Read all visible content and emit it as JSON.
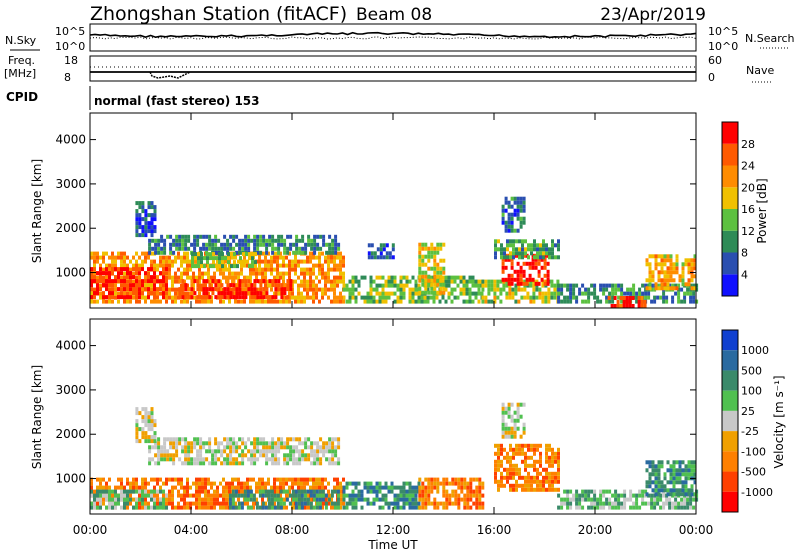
{
  "header": {
    "station": "Zhongshan Station (fitACF)",
    "beam": "Beam 08",
    "date": "23/Apr/2019"
  },
  "status_panels": {
    "nsky_label": "N.Sky",
    "nsearch_label": "N.Search",
    "noise_ticks": [
      "10^5",
      "10^0"
    ],
    "freq_label": "Freq.",
    "freq_unit": "[MHz]",
    "freq_ticks": [
      "18",
      "8"
    ],
    "nave_label": "Nave",
    "nave_ticks": [
      "60",
      "0"
    ],
    "cpid_label": "CPID",
    "cpid_value": "normal (fast stereo) 153"
  },
  "colors": {
    "power_scale": [
      "#1010ff",
      "#2a4fb0",
      "#2e8b57",
      "#5cc040",
      "#f0c000",
      "#ff8c00",
      "#ff5a00",
      "#ff0000"
    ],
    "velocity_scale": [
      "#1040d0",
      "#2a6aa0",
      "#3a8a6a",
      "#50c050",
      "#c8c8c8",
      "#f0a000",
      "#ff8000",
      "#ff4000",
      "#ff0000"
    ]
  },
  "chart_data": [
    {
      "type": "heatmap",
      "name": "power",
      "ylabel": "Slant Range [km]",
      "y_ticks": [
        "1000",
        "2000",
        "3000",
        "4000"
      ],
      "ylim": [
        200,
        4600
      ],
      "xlim": [
        0,
        24
      ],
      "colorbar_label": "Power [dB]",
      "colorbar_ticks": [
        "4",
        "8",
        "12",
        "16",
        "20",
        "24",
        "28"
      ],
      "colorbar_range": [
        0,
        32
      ],
      "regions": [
        {
          "t0": 0.0,
          "t1": 10.0,
          "r0": 300,
          "r1": 1400,
          "level": 22
        },
        {
          "t0": 0.0,
          "t1": 3.0,
          "r0": 400,
          "r1": 1100,
          "level": 28
        },
        {
          "t0": 3.5,
          "t1": 8.0,
          "r0": 400,
          "r1": 800,
          "level": 28
        },
        {
          "t0": 2.3,
          "t1": 9.8,
          "r0": 1400,
          "r1": 1800,
          "level": 9
        },
        {
          "t0": 1.8,
          "t1": 2.6,
          "r0": 1800,
          "r1": 2600,
          "level": 6
        },
        {
          "t0": 4.0,
          "t1": 6.5,
          "r0": 1100,
          "r1": 1400,
          "level": 14
        },
        {
          "t0": 10.0,
          "t1": 15.5,
          "r0": 300,
          "r1": 900,
          "level": 14
        },
        {
          "t0": 13.0,
          "t1": 14.0,
          "r0": 500,
          "r1": 1600,
          "level": 18
        },
        {
          "t0": 15.5,
          "t1": 18.5,
          "r0": 300,
          "r1": 800,
          "level": 16
        },
        {
          "t0": 16.3,
          "t1": 18.2,
          "r0": 700,
          "r1": 1400,
          "level": 30
        },
        {
          "t0": 16.0,
          "t1": 18.5,
          "r0": 1300,
          "r1": 1700,
          "level": 12
        },
        {
          "t0": 16.3,
          "t1": 17.2,
          "r0": 1900,
          "r1": 2700,
          "level": 8
        },
        {
          "t0": 18.5,
          "t1": 24.0,
          "r0": 300,
          "r1": 700,
          "level": 10
        },
        {
          "t0": 20.5,
          "t1": 22.0,
          "r0": 200,
          "r1": 400,
          "level": 28
        },
        {
          "t0": 22.0,
          "t1": 24.0,
          "r0": 600,
          "r1": 1400,
          "level": 20
        },
        {
          "t0": 11.0,
          "t1": 12.0,
          "r0": 1300,
          "r1": 1600,
          "level": 6
        }
      ]
    },
    {
      "type": "heatmap",
      "name": "velocity",
      "ylabel": "Slant Range [km]",
      "y_ticks": [
        "1000",
        "2000",
        "3000",
        "4000"
      ],
      "ylim": [
        200,
        4600
      ],
      "xlim": [
        0,
        24
      ],
      "x_ticks": [
        "00:00",
        "04:00",
        "08:00",
        "12:00",
        "16:00",
        "20:00",
        "00:00"
      ],
      "xlabel": "Time UT",
      "colorbar_label": "Velocity [m s⁻¹]",
      "colorbar_ticks": [
        "1000",
        "500",
        "100",
        "25",
        "-25",
        "-100",
        "-500",
        "-1000"
      ],
      "regions": [
        {
          "t0": 0.0,
          "t1": 10.0,
          "r0": 300,
          "r1": 1000,
          "cls": 6
        },
        {
          "t0": 0.0,
          "t1": 3.0,
          "r0": 300,
          "r1": 700,
          "cls": 3
        },
        {
          "t0": 2.3,
          "t1": 9.8,
          "r0": 1300,
          "r1": 1900,
          "cls": 4
        },
        {
          "t0": 1.8,
          "t1": 2.6,
          "r0": 1800,
          "r1": 2600,
          "cls": 4
        },
        {
          "t0": 5.5,
          "t1": 9.8,
          "r0": 300,
          "r1": 700,
          "cls": 2
        },
        {
          "t0": 10.0,
          "t1": 13.0,
          "r0": 300,
          "r1": 900,
          "cls": 2
        },
        {
          "t0": 13.0,
          "t1": 15.5,
          "r0": 300,
          "r1": 1000,
          "cls": 6
        },
        {
          "t0": 16.0,
          "t1": 18.5,
          "r0": 700,
          "r1": 1700,
          "cls": 6
        },
        {
          "t0": 16.3,
          "t1": 17.2,
          "r0": 1900,
          "r1": 2700,
          "cls": 4
        },
        {
          "t0": 18.5,
          "t1": 24.0,
          "r0": 300,
          "r1": 700,
          "cls": 3
        },
        {
          "t0": 22.0,
          "t1": 24.0,
          "r0": 600,
          "r1": 1400,
          "cls": 2
        }
      ]
    }
  ]
}
